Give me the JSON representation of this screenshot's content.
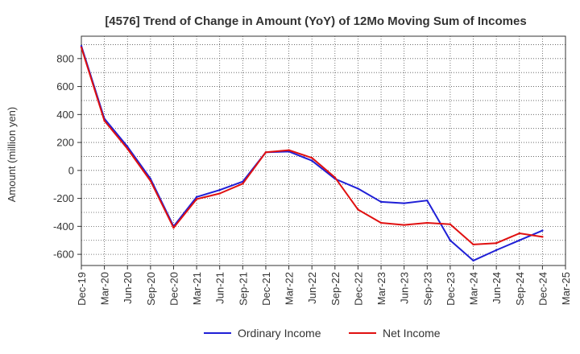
{
  "chart_data": {
    "type": "line",
    "title": "[4576]  Trend of Change in Amount (YoY) of 12Mo Moving Sum of Incomes",
    "xlabel": "",
    "ylabel": "Amount (million yen)",
    "ylim": [
      -680,
      960
    ],
    "yticks": [
      -600,
      -400,
      -200,
      0,
      200,
      400,
      600,
      800
    ],
    "categories": [
      "Dec-19",
      "Mar-20",
      "Jun-20",
      "Sep-20",
      "Dec-20",
      "Mar-21",
      "Jun-21",
      "Sep-21",
      "Dec-21",
      "Mar-22",
      "Jun-22",
      "Sep-22",
      "Dec-22",
      "Mar-23",
      "Jun-23",
      "Sep-23",
      "Dec-23",
      "Mar-24",
      "Jun-24",
      "Sep-24",
      "Dec-24",
      "Mar-25"
    ],
    "series": [
      {
        "name": "Ordinary Income",
        "color": "#1f1fd6",
        "values": [
          890,
          370,
          170,
          -60,
          -400,
          -190,
          -140,
          -80,
          130,
          135,
          70,
          -60,
          -130,
          -225,
          -235,
          -215,
          -500,
          -645,
          -570,
          -500,
          -430,
          null
        ]
      },
      {
        "name": "Net Income",
        "color": "#e01010",
        "values": [
          880,
          355,
          155,
          -75,
          -410,
          -205,
          -165,
          -95,
          130,
          145,
          90,
          -50,
          -280,
          -375,
          -390,
          -375,
          -385,
          -530,
          -520,
          -450,
          -475,
          null
        ]
      }
    ],
    "legend": "bottom-center",
    "grid": true
  }
}
